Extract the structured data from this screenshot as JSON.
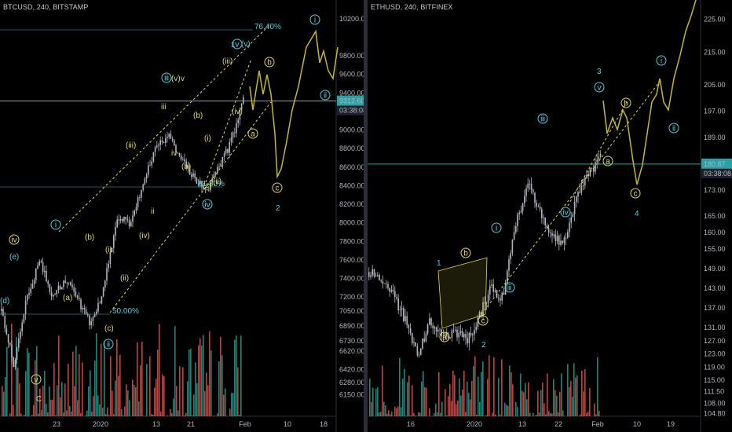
{
  "colors": {
    "background": "#000000",
    "bull": "#26a69a",
    "bear": "#ef5350",
    "candle": "#b2b5be",
    "wave_cyan": "#4dd0e1",
    "wave_yellow": "#e6d84a",
    "projection": "#c8b820",
    "hline": "#2ba1a5",
    "price_tag": "#2ba1a5"
  },
  "chart_data": [
    {
      "type": "line",
      "title": "BTCUSD, 240, BITSTAMP",
      "xlabel": "",
      "ylabel": "",
      "y_ticks": [
        "10200.00",
        "9800.00",
        "9600.00",
        "9400.00",
        "9000.00",
        "8800.00",
        "8600.00",
        "8400.00",
        "8200.00",
        "8000.00",
        "7800.00",
        "7600.00",
        "7400.00",
        "7200.00",
        "7050.00",
        "6890.00",
        "6730.00",
        "6620.00",
        "6420.00",
        "6280.00",
        "6150.00"
      ],
      "x_ticks": [
        "23",
        "2020",
        "13",
        "21",
        "Feb",
        "10",
        "18"
      ],
      "ylim": [
        6000,
        10300
      ],
      "price_tag": "9312.60",
      "countdown": "03:38:08",
      "fib_labels": [
        "76.40%",
        "61.80%",
        "50.00%"
      ],
      "wave_labels": [
        "ⅰ",
        "ⅱ",
        "ⅲ",
        "ⅳ",
        "ⅴ",
        "ⅰ",
        "ⅱ",
        "ⅲ",
        "ⅳ",
        "(v)",
        "1",
        "2",
        "a",
        "b",
        "c",
        "(e)",
        "(d)",
        "C",
        "iii",
        "iv",
        "ii",
        "v",
        "(a)",
        "(b)",
        "(c)",
        "(i)",
        "(ii)",
        "(iii)",
        "(iv)",
        "(a)",
        "(b)",
        "(c)"
      ],
      "labels": {
        "wave1": "1",
        "wave2": "2",
        "v_roman": "v",
        "iii_top": "iii",
        "ii_bot": "ii",
        "C": "C"
      },
      "series": [
        {
          "name": "",
          "x": [
            "Dec 17",
            "Dec 19",
            "Dec 21",
            "Dec 23",
            "Dec 26",
            "Dec 29",
            "Jan 1",
            "Jan 3",
            "Jan 6",
            "Jan 8",
            "Jan 10",
            "Jan 13",
            "Jan 15",
            "Jan 17",
            "Jan 19",
            "Jan 21",
            "Jan 23",
            "Jan 25",
            "Jan 27",
            "Jan 29"
          ],
          "values": [
            7050,
            6450,
            7200,
            7600,
            7200,
            7400,
            7150,
            6900,
            7300,
            8050,
            8000,
            8400,
            8800,
            8950,
            8700,
            8500,
            8350,
            8600,
            8900,
            9400
          ]
        }
      ]
    },
    {
      "type": "line",
      "title": "ETHUSD, 240, BITFINEX",
      "xlabel": "",
      "ylabel": "",
      "y_ticks": [
        "225.00",
        "215.00",
        "205.00",
        "197.00",
        "189.00",
        "180.87",
        "173.00",
        "165.00",
        "160.00",
        "155.00",
        "149.00",
        "143.00",
        "137.00",
        "131.00",
        "127.00",
        "123.00",
        "119.00",
        "115.00",
        "111.50",
        "108.00",
        "104.80"
      ],
      "x_ticks": [
        "16",
        "2020",
        "13",
        "22",
        "Feb",
        "10",
        "19"
      ],
      "ylim": [
        104,
        228
      ],
      "price_tag": "180.87",
      "countdown": "03:38:08",
      "labels": {
        "wave1": "1",
        "wave2": "2",
        "wave3": "3",
        "wave4": "4"
      },
      "series": [
        {
          "name": "",
          "x": [
            "Dec 10",
            "Dec 13",
            "Dec 16",
            "Dec 18",
            "Dec 20",
            "Dec 23",
            "Dec 26",
            "Dec 29",
            "Jan 1",
            "Jan 4",
            "Jan 7",
            "Jan 10",
            "Jan 13",
            "Jan 15",
            "Jan 18",
            "Jan 21",
            "Jan 24",
            "Jan 27",
            "Jan 30",
            "Feb 1"
          ],
          "values": [
            148,
            146,
            141,
            133,
            122,
            133,
            128,
            130,
            127,
            134,
            143,
            140,
            162,
            175,
            166,
            158,
            157,
            170,
            178,
            183
          ]
        }
      ]
    }
  ]
}
